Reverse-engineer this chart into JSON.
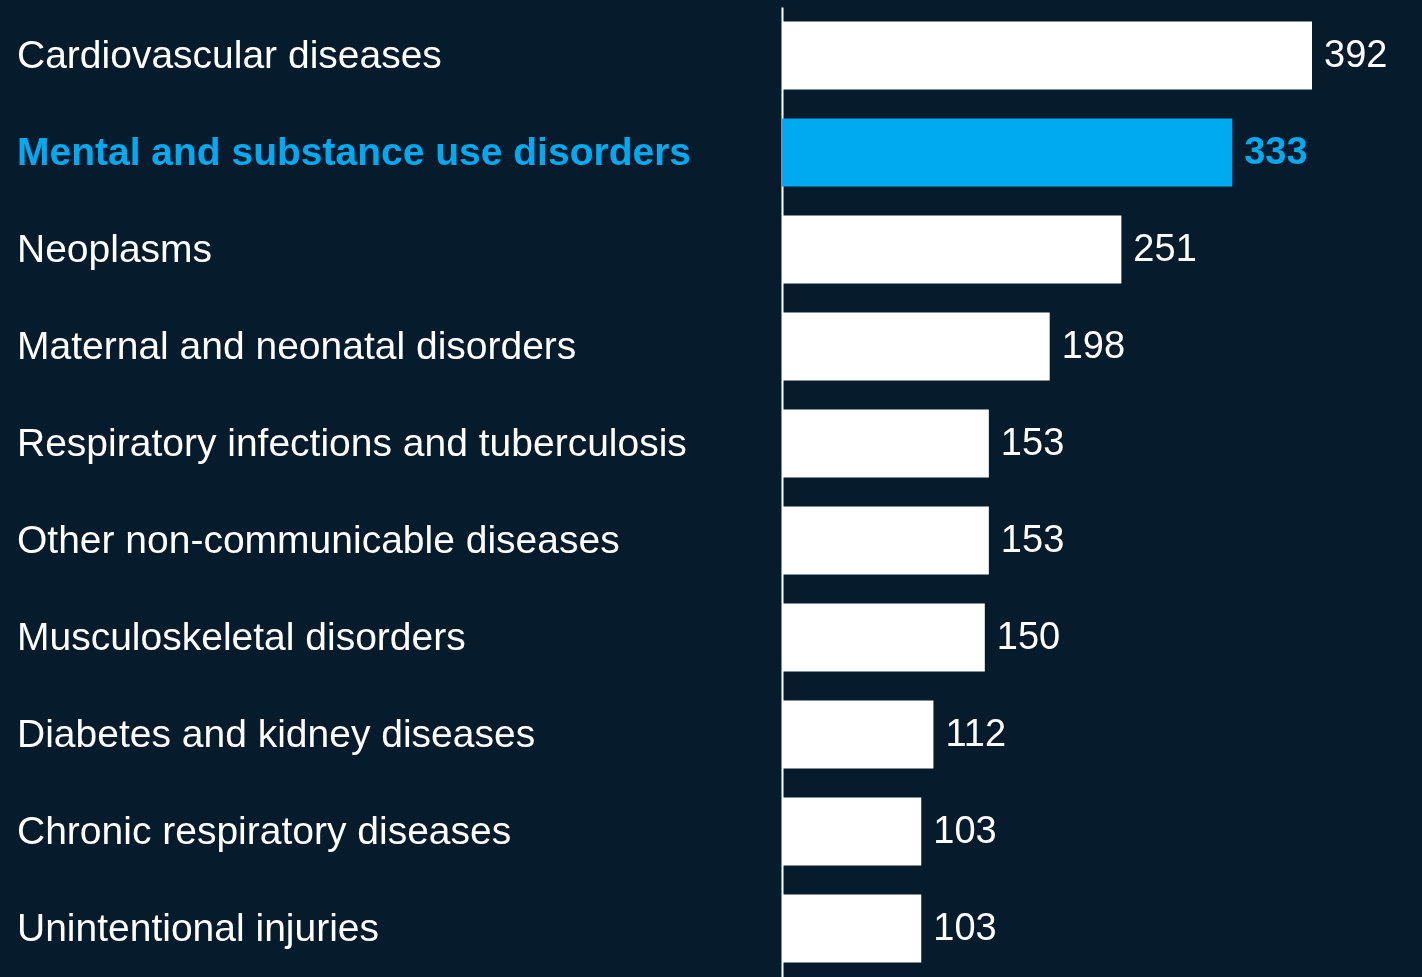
{
  "chart_data": {
    "type": "bar",
    "orientation": "horizontal",
    "data_labels": true,
    "categories": [
      "Cardiovascular diseases",
      "Mental and substance use disorders",
      "Neoplasms",
      "Maternal and neonatal disorders",
      "Respiratory infections and tuberculosis",
      "Other non-communicable diseases",
      "Musculoskeletal disorders",
      "Diabetes and kidney diseases",
      "Chronic respiratory diseases",
      "Unintentional injuries"
    ],
    "values": [
      392,
      333,
      251,
      198,
      153,
      153,
      150,
      112,
      103,
      103
    ],
    "colors": [
      "#ffffff",
      "#00aaf0",
      "#ffffff",
      "#ffffff",
      "#ffffff",
      "#ffffff",
      "#ffffff",
      "#ffffff",
      "#ffffff",
      "#ffffff"
    ]
  }
}
